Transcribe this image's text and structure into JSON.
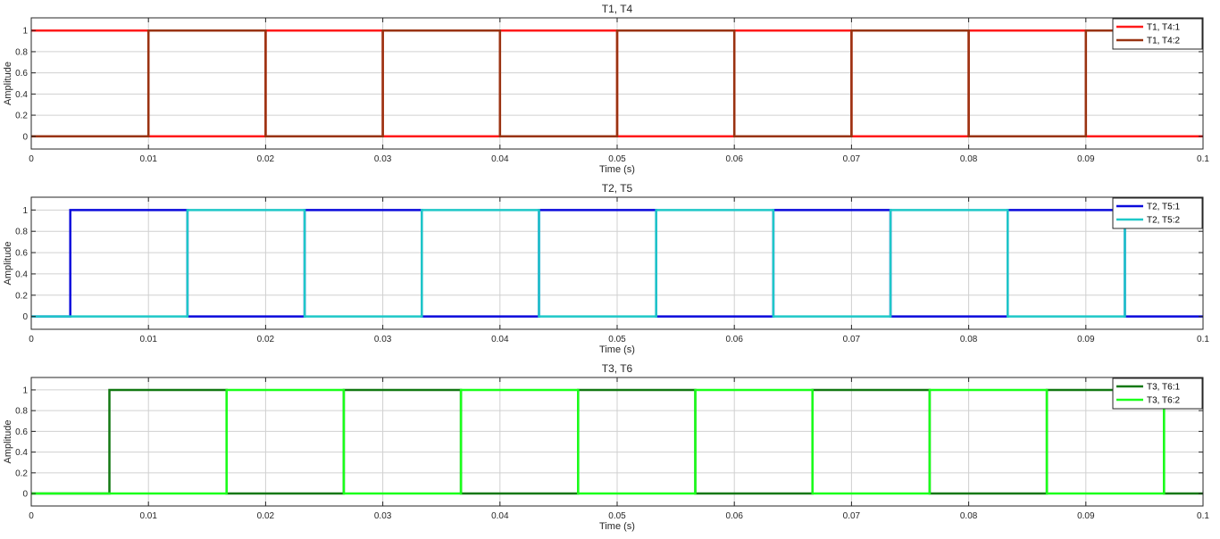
{
  "chart_data": [
    {
      "type": "line",
      "title": "T1, T4",
      "xlabel": "Time (s)",
      "ylabel": "Amplitude",
      "xlim": [
        0,
        0.1
      ],
      "ylim": [
        -0.12,
        1.12
      ],
      "xticks": [
        0,
        0.01,
        0.02,
        0.03,
        0.04,
        0.05,
        0.06,
        0.07,
        0.08,
        0.09,
        0.1
      ],
      "xtick_labels": [
        "0",
        "0.01",
        "0.02",
        "0.03",
        "0.04",
        "0.05",
        "0.06",
        "0.07",
        "0.08",
        "0.09",
        "0.1"
      ],
      "yticks": [
        0,
        0.2,
        0.4,
        0.6,
        0.8,
        1
      ],
      "ytick_labels": [
        "0",
        "0.2",
        "0.4",
        "0.6",
        "0.8",
        "1"
      ],
      "grid": true,
      "legend": "top-right",
      "series": [
        {
          "name": "T1, T4:1",
          "color": "#ff1a1a",
          "x": [
            0,
            0.01,
            0.01,
            0.02,
            0.02,
            0.03,
            0.03,
            0.04,
            0.04,
            0.05,
            0.05,
            0.06,
            0.06,
            0.07,
            0.07,
            0.08,
            0.08,
            0.09,
            0.09,
            0.1
          ],
          "y": [
            1,
            1,
            0,
            0,
            1,
            1,
            0,
            0,
            1,
            1,
            0,
            0,
            1,
            1,
            0,
            0,
            1,
            1,
            0,
            0
          ]
        },
        {
          "name": "T1, T4:2",
          "color": "#993311",
          "x": [
            0,
            0.01,
            0.01,
            0.02,
            0.02,
            0.03,
            0.03,
            0.04,
            0.04,
            0.05,
            0.05,
            0.06,
            0.06,
            0.07,
            0.07,
            0.08,
            0.08,
            0.09,
            0.09,
            0.1
          ],
          "y": [
            0,
            0,
            1,
            1,
            0,
            0,
            1,
            1,
            0,
            0,
            1,
            1,
            0,
            0,
            1,
            1,
            0,
            0,
            1,
            1
          ]
        }
      ]
    },
    {
      "type": "line",
      "title": "T2, T5",
      "xlabel": "Time (s)",
      "ylabel": "Amplitude",
      "xlim": [
        0,
        0.1
      ],
      "ylim": [
        -0.12,
        1.12
      ],
      "xticks": [
        0,
        0.01,
        0.02,
        0.03,
        0.04,
        0.05,
        0.06,
        0.07,
        0.08,
        0.09,
        0.1
      ],
      "xtick_labels": [
        "0",
        "0.01",
        "0.02",
        "0.03",
        "0.04",
        "0.05",
        "0.06",
        "0.07",
        "0.08",
        "0.09",
        "0.1"
      ],
      "yticks": [
        0,
        0.2,
        0.4,
        0.6,
        0.8,
        1
      ],
      "ytick_labels": [
        "0",
        "0.2",
        "0.4",
        "0.6",
        "0.8",
        "1"
      ],
      "grid": true,
      "legend": "top-right",
      "series": [
        {
          "name": "T2, T5:1",
          "color": "#0a0adc",
          "x": [
            0,
            0.00333,
            0.00333,
            0.01333,
            0.01333,
            0.02333,
            0.02333,
            0.03333,
            0.03333,
            0.04333,
            0.04333,
            0.05333,
            0.05333,
            0.06333,
            0.06333,
            0.07333,
            0.07333,
            0.08333,
            0.08333,
            0.09333,
            0.09333,
            0.1
          ],
          "y": [
            0,
            0,
            1,
            1,
            0,
            0,
            1,
            1,
            0,
            0,
            1,
            1,
            0,
            0,
            1,
            1,
            0,
            0,
            1,
            1,
            0,
            0
          ]
        },
        {
          "name": "T2, T5:2",
          "color": "#1ec8c8",
          "x": [
            0,
            0.01333,
            0.01333,
            0.02333,
            0.02333,
            0.03333,
            0.03333,
            0.04333,
            0.04333,
            0.05333,
            0.05333,
            0.06333,
            0.06333,
            0.07333,
            0.07333,
            0.08333,
            0.08333,
            0.09333,
            0.09333,
            0.1
          ],
          "y": [
            0,
            0,
            1,
            1,
            0,
            0,
            1,
            1,
            0,
            0,
            1,
            1,
            0,
            0,
            1,
            1,
            0,
            0,
            1,
            1
          ]
        }
      ]
    },
    {
      "type": "line",
      "title": "T3, T6",
      "xlabel": "Time (s)",
      "ylabel": "Amplitude",
      "xlim": [
        0,
        0.1
      ],
      "ylim": [
        -0.12,
        1.12
      ],
      "xticks": [
        0,
        0.01,
        0.02,
        0.03,
        0.04,
        0.05,
        0.06,
        0.07,
        0.08,
        0.09,
        0.1
      ],
      "xtick_labels": [
        "0",
        "0.01",
        "0.02",
        "0.03",
        "0.04",
        "0.05",
        "0.06",
        "0.07",
        "0.08",
        "0.09",
        "0.1"
      ],
      "yticks": [
        0,
        0.2,
        0.4,
        0.6,
        0.8,
        1
      ],
      "ytick_labels": [
        "0",
        "0.2",
        "0.4",
        "0.6",
        "0.8",
        "1"
      ],
      "grid": true,
      "legend": "top-right",
      "series": [
        {
          "name": "T3, T6:1",
          "color": "#127812",
          "x": [
            0,
            0.00667,
            0.00667,
            0.01667,
            0.01667,
            0.02667,
            0.02667,
            0.03667,
            0.03667,
            0.04667,
            0.04667,
            0.05667,
            0.05667,
            0.06667,
            0.06667,
            0.07667,
            0.07667,
            0.08667,
            0.08667,
            0.09667,
            0.09667,
            0.1
          ],
          "y": [
            0,
            0,
            1,
            1,
            0,
            0,
            1,
            1,
            0,
            0,
            1,
            1,
            0,
            0,
            1,
            1,
            0,
            0,
            1,
            1,
            0,
            0
          ]
        },
        {
          "name": "T3, T6:2",
          "color": "#1aff1a",
          "x": [
            0,
            0.01667,
            0.01667,
            0.02667,
            0.02667,
            0.03667,
            0.03667,
            0.04667,
            0.04667,
            0.05667,
            0.05667,
            0.06667,
            0.06667,
            0.07667,
            0.07667,
            0.08667,
            0.08667,
            0.09667,
            0.09667,
            0.1
          ],
          "y": [
            0,
            0,
            1,
            1,
            0,
            0,
            1,
            1,
            0,
            0,
            1,
            1,
            0,
            0,
            1,
            1,
            0,
            0,
            1,
            1
          ]
        }
      ]
    }
  ]
}
